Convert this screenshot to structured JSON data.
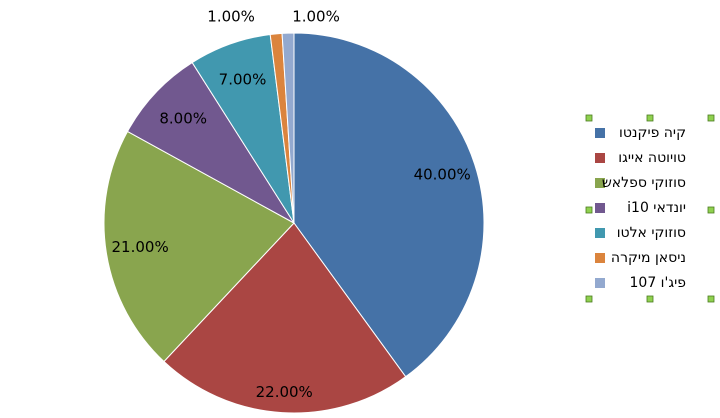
{
  "chart_data": {
    "type": "pie",
    "categories": [
      "קיה פיקנטו",
      "טויוטה אייגו",
      "סוזוקי ספלאש",
      "יונדאי i10",
      "סוזוקי אלטו",
      "ניסאן מיקרה",
      "פיג'ו 107"
    ],
    "values": [
      40,
      22,
      21,
      8,
      7,
      1,
      1
    ],
    "value_labels": [
      "40.00%",
      "22.00%",
      "21.00%",
      "8.00%",
      "7.00%",
      "1.00%",
      "1.00%"
    ],
    "colors": [
      "#4572a7",
      "#aa4643",
      "#89a54e",
      "#71588f",
      "#4198af",
      "#db843d",
      "#93a9cf"
    ],
    "legend": "right"
  }
}
